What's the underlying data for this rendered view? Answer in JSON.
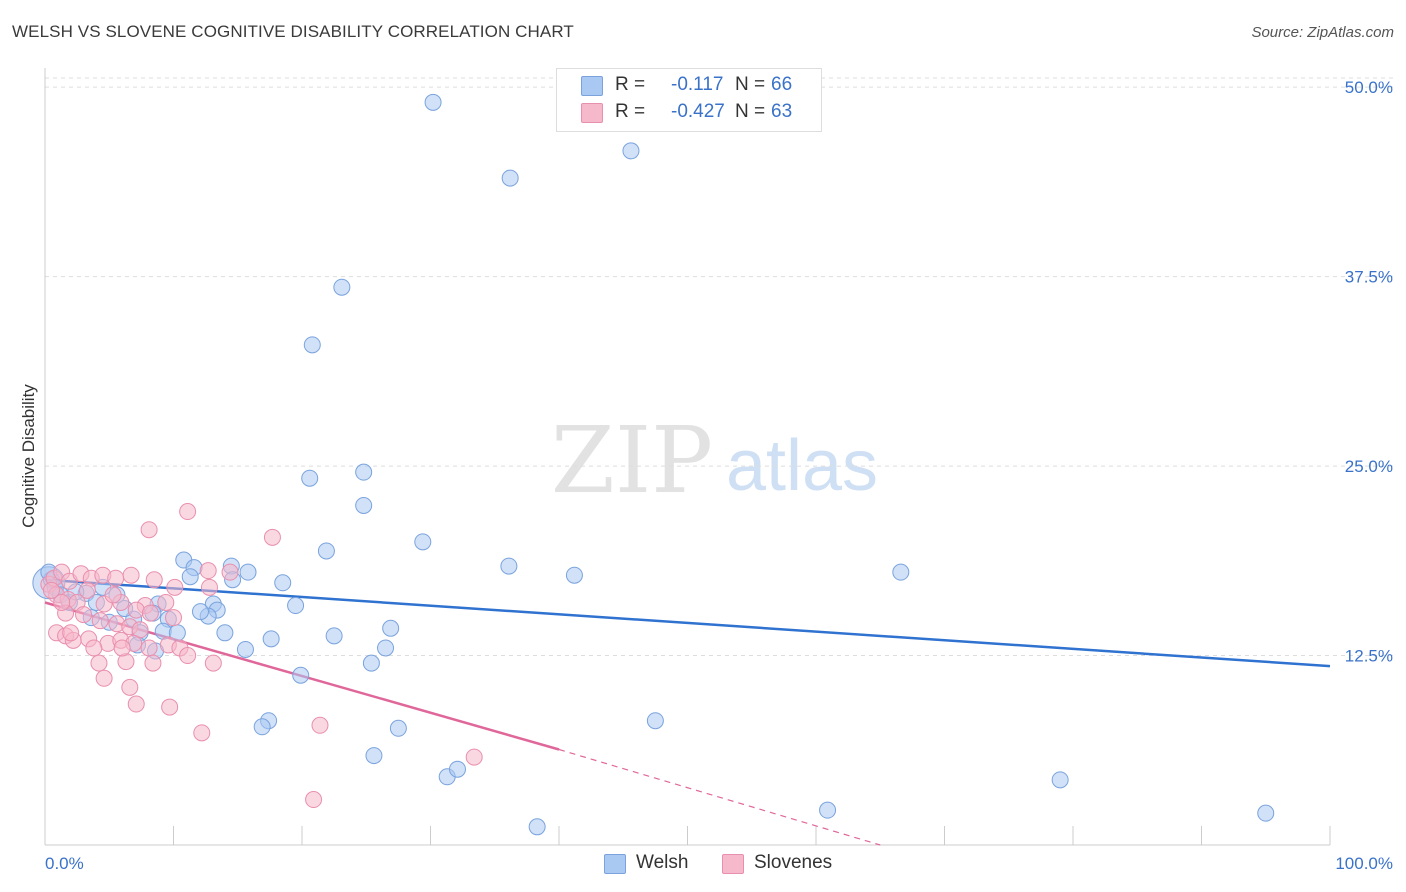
{
  "title": "WELSH VS SLOVENE COGNITIVE DISABILITY CORRELATION CHART",
  "source": "Source: ZipAtlas.com",
  "watermark": {
    "zip": "ZIP",
    "atlas": "atlas"
  },
  "legend_top": {
    "rows": [
      {
        "r_label": "R =",
        "r_value": "-0.117",
        "n_label": "N =",
        "n_value": "66"
      },
      {
        "r_label": "R =",
        "r_value": "-0.427",
        "n_label": "N =",
        "n_value": "63"
      }
    ]
  },
  "legend_bottom": {
    "items": [
      "Welsh",
      "Slovenes"
    ]
  },
  "colors": {
    "welsh_fill": "#a9c8f2",
    "welsh_stroke": "#7aa3dd",
    "welsh_line": "#2f72d0",
    "slovene_fill": "#f6b8cb",
    "slovene_stroke": "#e98fae",
    "slovene_line": "#e0679a",
    "tick_label": "#3a72c9",
    "grid": "#dddddd"
  },
  "chart_data": {
    "type": "scatter",
    "title": "WELSH VS SLOVENE COGNITIVE DISABILITY CORRELATION CHART",
    "xlabel": "",
    "ylabel": "Cognitive Disability",
    "xlim": [
      0,
      100
    ],
    "ylim": [
      0,
      51
    ],
    "x_tick_labels": [
      "0.0%",
      "100.0%"
    ],
    "y_ticks": [
      12.5,
      25.0,
      37.5,
      50.0
    ],
    "y_tick_labels": [
      "12.5%",
      "25.0%",
      "37.5%",
      "50.0%"
    ],
    "grid": true,
    "legend": "top-center",
    "series": [
      {
        "name": "Welsh",
        "points": [
          [
            30.2,
            49.0
          ],
          [
            45.6,
            45.8
          ],
          [
            36.2,
            44.0
          ],
          [
            23.1,
            36.8
          ],
          [
            20.8,
            33.0
          ],
          [
            24.8,
            24.6
          ],
          [
            20.6,
            24.2
          ],
          [
            24.8,
            22.4
          ],
          [
            29.4,
            20.0
          ],
          [
            21.9,
            19.4
          ],
          [
            36.1,
            18.4
          ],
          [
            41.2,
            17.8
          ],
          [
            66.6,
            18.0
          ],
          [
            10.8,
            18.8
          ],
          [
            11.6,
            18.3
          ],
          [
            14.5,
            18.4
          ],
          [
            15.8,
            18.0
          ],
          [
            11.3,
            17.7
          ],
          [
            14.6,
            17.5
          ],
          [
            18.5,
            17.3
          ],
          [
            0.5,
            17.5
          ],
          [
            0.8,
            17.0
          ],
          [
            1.2,
            16.5
          ],
          [
            1.9,
            16.0
          ],
          [
            3.2,
            16.6
          ],
          [
            4.0,
            16.0
          ],
          [
            5.6,
            16.5
          ],
          [
            8.8,
            15.9
          ],
          [
            19.5,
            15.8
          ],
          [
            13.1,
            15.9
          ],
          [
            13.4,
            15.5
          ],
          [
            12.7,
            15.1
          ],
          [
            8.4,
            15.3
          ],
          [
            6.9,
            14.9
          ],
          [
            9.6,
            14.9
          ],
          [
            5.0,
            14.7
          ],
          [
            9.2,
            14.1
          ],
          [
            7.4,
            14.0
          ],
          [
            10.3,
            14.0
          ],
          [
            14.0,
            14.0
          ],
          [
            26.9,
            14.3
          ],
          [
            22.5,
            13.8
          ],
          [
            17.6,
            13.6
          ],
          [
            7.2,
            13.2
          ],
          [
            8.6,
            12.8
          ],
          [
            15.6,
            12.9
          ],
          [
            26.5,
            13.0
          ],
          [
            25.4,
            12.0
          ],
          [
            19.9,
            11.2
          ],
          [
            17.4,
            8.2
          ],
          [
            16.9,
            7.8
          ],
          [
            27.5,
            7.7
          ],
          [
            47.5,
            8.2
          ],
          [
            25.6,
            5.9
          ],
          [
            31.3,
            4.5
          ],
          [
            32.1,
            5.0
          ],
          [
            60.9,
            2.3
          ],
          [
            79.0,
            4.3
          ],
          [
            95.0,
            2.1
          ],
          [
            38.3,
            1.2
          ],
          [
            0.3,
            18.0
          ],
          [
            2.4,
            16.7
          ],
          [
            6.2,
            15.6
          ],
          [
            12.1,
            15.4
          ],
          [
            4.5,
            17.0
          ],
          [
            3.6,
            15.0
          ]
        ]
      },
      {
        "name": "Slovenes",
        "points": [
          [
            11.1,
            22.0
          ],
          [
            8.1,
            20.8
          ],
          [
            17.7,
            20.3
          ],
          [
            12.7,
            18.1
          ],
          [
            14.4,
            18.0
          ],
          [
            0.3,
            17.2
          ],
          [
            0.7,
            17.6
          ],
          [
            1.3,
            18.0
          ],
          [
            1.9,
            17.4
          ],
          [
            2.8,
            17.9
          ],
          [
            3.6,
            17.6
          ],
          [
            4.5,
            17.8
          ],
          [
            5.5,
            17.6
          ],
          [
            6.7,
            17.8
          ],
          [
            8.5,
            17.5
          ],
          [
            10.1,
            17.0
          ],
          [
            12.8,
            17.0
          ],
          [
            3.3,
            16.8
          ],
          [
            0.9,
            16.5
          ],
          [
            1.8,
            16.2
          ],
          [
            2.5,
            16.0
          ],
          [
            4.6,
            15.9
          ],
          [
            5.9,
            16.0
          ],
          [
            7.8,
            15.8
          ],
          [
            9.4,
            16.0
          ],
          [
            7.1,
            15.5
          ],
          [
            8.2,
            15.3
          ],
          [
            1.6,
            15.3
          ],
          [
            3.0,
            15.2
          ],
          [
            4.3,
            14.8
          ],
          [
            5.6,
            14.6
          ],
          [
            6.6,
            14.4
          ],
          [
            7.4,
            14.2
          ],
          [
            0.9,
            14.0
          ],
          [
            1.6,
            13.8
          ],
          [
            2.2,
            13.5
          ],
          [
            3.4,
            13.6
          ],
          [
            4.9,
            13.3
          ],
          [
            5.9,
            13.5
          ],
          [
            6.9,
            13.3
          ],
          [
            8.1,
            13.0
          ],
          [
            9.6,
            13.2
          ],
          [
            10.5,
            13.0
          ],
          [
            11.1,
            12.5
          ],
          [
            4.2,
            12.0
          ],
          [
            6.3,
            12.1
          ],
          [
            8.4,
            12.0
          ],
          [
            13.1,
            12.0
          ],
          [
            4.6,
            11.0
          ],
          [
            6.6,
            10.4
          ],
          [
            7.1,
            9.3
          ],
          [
            9.7,
            9.1
          ],
          [
            12.2,
            7.4
          ],
          [
            21.4,
            7.9
          ],
          [
            33.4,
            5.8
          ],
          [
            20.9,
            3.0
          ],
          [
            1.3,
            16.0
          ],
          [
            2.0,
            14.0
          ],
          [
            3.8,
            13.0
          ],
          [
            10.0,
            15.0
          ],
          [
            5.3,
            16.5
          ],
          [
            6.0,
            13.0
          ],
          [
            0.5,
            16.8
          ]
        ]
      }
    ],
    "trendlines": [
      {
        "series": "Welsh",
        "x": [
          0,
          100
        ],
        "y": [
          17.5,
          11.8
        ]
      },
      {
        "series": "Slovenes",
        "x": [
          0,
          40
        ],
        "y": [
          16.0,
          6.3
        ],
        "dashed_extension_to": [
          65,
          0
        ]
      }
    ]
  }
}
